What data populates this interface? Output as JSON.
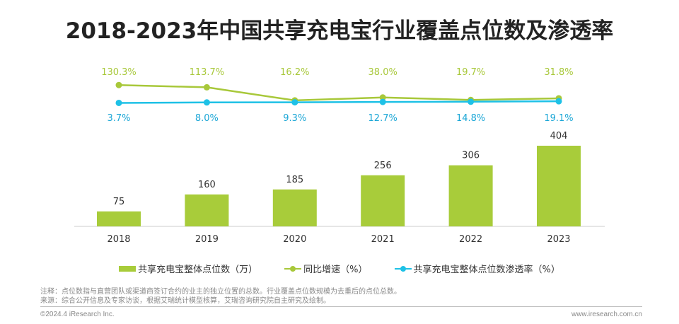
{
  "title": "2018-2023年中国共享充电宝行业覆盖点位数及渗透率",
  "chart_data": {
    "type": "bar",
    "categories": [
      "2018",
      "2019",
      "2020",
      "2021",
      "2022",
      "2023"
    ],
    "series": [
      {
        "name": "共享充电宝整体点位数（万）",
        "type": "bar",
        "color": "#a8cc3a",
        "values": [
          75,
          160,
          185,
          256,
          306,
          404
        ],
        "labels": [
          "75",
          "160",
          "185",
          "256",
          "306",
          "404"
        ]
      },
      {
        "name": "同比增速（%）",
        "type": "line",
        "color": "#a8c83a",
        "values": [
          130.3,
          113.7,
          16.2,
          38.0,
          19.7,
          31.8
        ],
        "labels": [
          "130.3%",
          "113.7%",
          "16.2%",
          "38.0%",
          "19.7%",
          "31.8%"
        ]
      },
      {
        "name": "共享充电宝整体点位数渗透率（%）",
        "type": "line",
        "color": "#1ec1e6",
        "values": [
          3.7,
          8.0,
          9.3,
          12.7,
          14.8,
          19.1
        ],
        "labels": [
          "3.7%",
          "8.0%",
          "9.3%",
          "12.7%",
          "14.8%",
          "19.1%"
        ]
      }
    ],
    "legend_position": "bottom",
    "grid": false
  },
  "notes": {
    "note": "注释：点位数指与直营团队或渠道商签订合约的业主的独立位置的总数。行业覆盖点位数规模为去重后的点位总数。",
    "source": "来源：综合公开信息及专家访谈，根据艾瑞统计模型核算，艾瑞咨询研究院自主研究及绘制。",
    "copyright": "©2024.4 iResearch Inc.",
    "site": "www.iresearch.com.cn"
  }
}
